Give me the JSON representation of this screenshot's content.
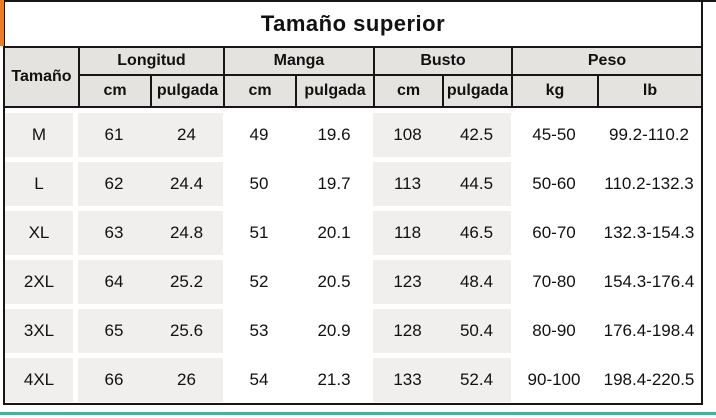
{
  "title": "Tamaño superior",
  "table": {
    "size_header": "Tamaño",
    "groups": [
      {
        "label": "Longitud",
        "units": [
          "cm",
          "pulgada"
        ]
      },
      {
        "label": "Manga",
        "units": [
          "cm",
          "pulgada"
        ]
      },
      {
        "label": "Busto",
        "units": [
          "cm",
          "pulgada"
        ]
      },
      {
        "label": "Peso",
        "units": [
          "kg",
          "lb"
        ]
      }
    ],
    "rows": [
      {
        "size": "M",
        "values": [
          "61",
          "24",
          "49",
          "19.6",
          "108",
          "42.5",
          "45-50",
          "99.2-110.2"
        ]
      },
      {
        "size": "L",
        "values": [
          "62",
          "24.4",
          "50",
          "19.7",
          "113",
          "44.5",
          "50-60",
          "110.2-132.3"
        ]
      },
      {
        "size": "XL",
        "values": [
          "63",
          "24.8",
          "51",
          "20.1",
          "118",
          "46.5",
          "60-70",
          "132.3-154.3"
        ]
      },
      {
        "size": "2XL",
        "values": [
          "64",
          "25.2",
          "52",
          "20.5",
          "123",
          "48.4",
          "70-80",
          "154.3-176.4"
        ]
      },
      {
        "size": "3XL",
        "values": [
          "65",
          "25.6",
          "53",
          "20.9",
          "128",
          "50.4",
          "80-90",
          "176.4-198.4"
        ]
      },
      {
        "size": "4XL",
        "values": [
          "66",
          "26",
          "54",
          "21.3",
          "133",
          "52.4",
          "90-100",
          "198.4-220.5"
        ]
      }
    ]
  },
  "chart_data": {
    "type": "table",
    "title": "Tamaño superior",
    "columns": [
      "Tamaño",
      "Longitud cm",
      "Longitud pulgada",
      "Manga cm",
      "Manga pulgada",
      "Busto cm",
      "Busto pulgada",
      "Peso kg",
      "Peso lb"
    ],
    "rows": [
      [
        "M",
        "61",
        "24",
        "49",
        "19.6",
        "108",
        "42.5",
        "45-50",
        "99.2-110.2"
      ],
      [
        "L",
        "62",
        "24.4",
        "50",
        "19.7",
        "113",
        "44.5",
        "50-60",
        "110.2-132.3"
      ],
      [
        "XL",
        "63",
        "24.8",
        "51",
        "20.1",
        "118",
        "46.5",
        "60-70",
        "132.3-154.3"
      ],
      [
        "2XL",
        "64",
        "25.2",
        "52",
        "20.5",
        "123",
        "48.4",
        "70-80",
        "154.3-176.4"
      ],
      [
        "3XL",
        "65",
        "25.6",
        "53",
        "20.9",
        "128",
        "50.4",
        "80-90",
        "176.4-198.4"
      ],
      [
        "4XL",
        "66",
        "26",
        "54",
        "21.3",
        "133",
        "52.4",
        "90-100",
        "198.4-220.5"
      ]
    ]
  },
  "colors": {
    "accent_orange": "#ee7a24",
    "accent_teal": "#2abfa3",
    "header_bg": "#e4e3e0",
    "row_bg": "#f0efed",
    "border_color": "#161616"
  }
}
